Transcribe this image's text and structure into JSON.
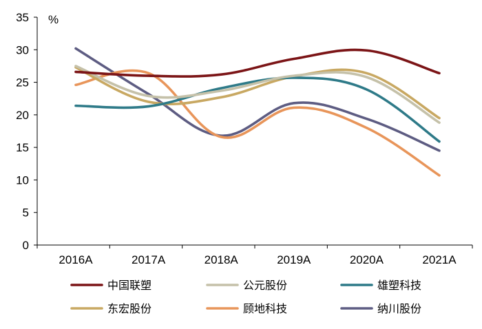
{
  "chart_data": {
    "type": "line",
    "title": "",
    "unit_label": "%",
    "xlabel": "",
    "ylabel": "",
    "categories": [
      "2016A",
      "2017A",
      "2018A",
      "2019A",
      "2020A",
      "2021A"
    ],
    "ylim": [
      0,
      35
    ],
    "yticks": [
      0,
      5,
      10,
      15,
      20,
      25,
      30,
      35
    ],
    "legend_position": "bottom",
    "series": [
      {
        "name": "中国联塑",
        "color": "#7B1416",
        "values": [
          26.6,
          26.0,
          26.2,
          28.6,
          29.9,
          26.4
        ]
      },
      {
        "name": "公元股份",
        "color": "#C5C1A9",
        "values": [
          27.5,
          22.9,
          23.7,
          26.0,
          25.8,
          18.8
        ]
      },
      {
        "name": "雄塑科技",
        "color": "#2E7A88",
        "values": [
          21.4,
          21.3,
          24.1,
          25.7,
          23.9,
          15.9
        ]
      },
      {
        "name": "东宏股份",
        "color": "#C8A862",
        "values": [
          27.3,
          22.0,
          22.7,
          25.9,
          26.4,
          19.5
        ]
      },
      {
        "name": "顾地科技",
        "color": "#E8955A",
        "values": [
          24.6,
          26.4,
          16.6,
          21.1,
          18.0,
          10.7
        ]
      },
      {
        "name": "纳川股份",
        "color": "#5D5C82",
        "values": [
          30.2,
          23.2,
          16.8,
          21.8,
          19.4,
          14.5
        ]
      }
    ]
  }
}
